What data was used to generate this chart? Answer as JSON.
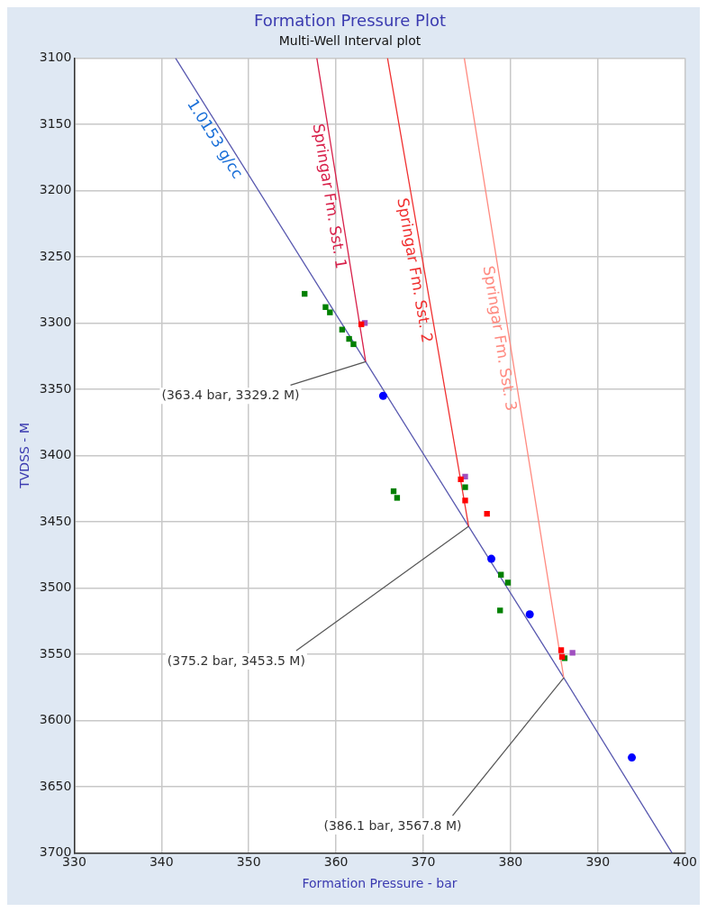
{
  "chart_data": {
    "type": "scatter",
    "title": "Formation Pressure Plot",
    "subtitle": "Multi-Well Interval plot",
    "xlabel": "Formation Pressure - bar",
    "ylabel": "TVDSS - M",
    "xlim": [
      330,
      400
    ],
    "xticks": [
      330,
      340,
      350,
      360,
      370,
      380,
      390,
      400
    ],
    "ylim": [
      3700,
      3100
    ],
    "yticks": [
      3100,
      3150,
      3200,
      3250,
      3300,
      3350,
      3400,
      3450,
      3500,
      3550,
      3600,
      3650,
      3700
    ],
    "grid": true,
    "legend": false,
    "series": [
      {
        "type": "line",
        "name": "1.0153 g/cc",
        "color": "#5a5ab0",
        "marker": "none",
        "line_style": "solid",
        "x": [
          341.6,
          363.4,
          375.2,
          386.1,
          398.5
        ],
        "values": [
          3100,
          3329.2,
          3453.5,
          3567.8,
          3700
        ]
      },
      {
        "type": "line",
        "name": "Springar Fm. Sst. 1",
        "color": "#d8204a",
        "marker": "none",
        "line_style": "solid",
        "x": [
          357.8,
          363.4
        ],
        "values": [
          3100,
          3329.2
        ]
      },
      {
        "type": "line",
        "name": "Springar Fm. Sst. 2",
        "color": "#f03030",
        "marker": "none",
        "line_style": "solid",
        "x": [
          365.9,
          375.2
        ],
        "values": [
          3100,
          3453.5
        ]
      },
      {
        "type": "line",
        "name": "Springar Fm. Sst. 3",
        "color": "#ff8a80",
        "marker": "none",
        "line_style": "solid",
        "x": [
          374.7,
          386.1
        ],
        "values": [
          3100,
          3567.8
        ]
      },
      {
        "color": "#a050c0",
        "marker": "square",
        "x": [
          363.3,
          374.8,
          387.1
        ],
        "values": [
          3300,
          3416,
          3549
        ]
      },
      {
        "color": "#008000",
        "marker": "square",
        "x": [
          356.4,
          358.8,
          359.3,
          360.7,
          361.5,
          362.0,
          366.6,
          367.0,
          374.8,
          378.9,
          379.7,
          378.8,
          386.2
        ],
        "values": [
          3278,
          3288,
          3292,
          3305,
          3312,
          3316,
          3427,
          3432,
          3424,
          3490,
          3496,
          3517,
          3553
        ]
      },
      {
        "color": "#ff0000",
        "marker": "square",
        "x": [
          362.9,
          374.3,
          374.8,
          377.3,
          385.8,
          385.9
        ],
        "values": [
          3301,
          3418,
          3434,
          3444,
          3547,
          3552
        ]
      },
      {
        "color": "#0000ff",
        "marker": "circle",
        "x": [
          365.4,
          377.8,
          382.2,
          393.9
        ],
        "values": [
          3355,
          3478,
          3520,
          3628
        ]
      }
    ],
    "annotations": [
      {
        "text": "(363.4 bar, 3329.2 M)",
        "x": 363.4,
        "y": 3329.2
      },
      {
        "text": "(375.2 bar, 3453.5 M)",
        "x": 375.2,
        "y": 3453.5
      },
      {
        "text": "(386.1 bar, 3567.8 M)",
        "x": 386.1,
        "y": 3567.8
      }
    ]
  }
}
